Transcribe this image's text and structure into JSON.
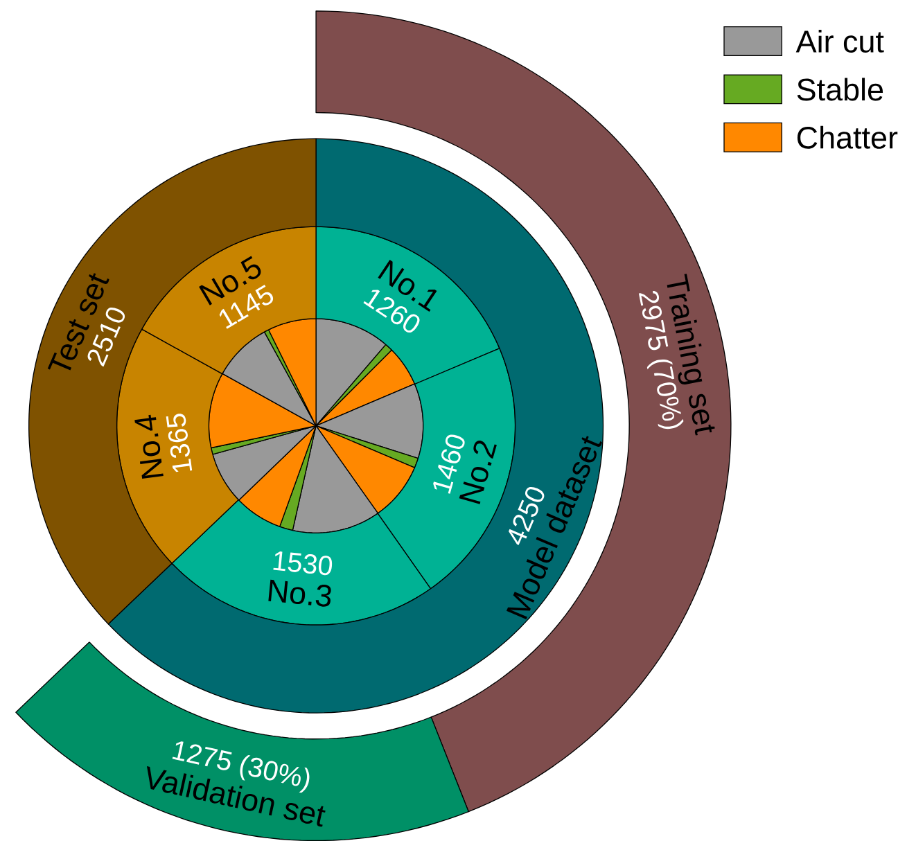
{
  "chart_data": [
    {
      "type": "pie",
      "legend": "top right",
      "categories": [
        "Air cut",
        "Stable",
        "Chatter",
        null,
        null,
        null,
        null,
        null,
        null,
        null,
        null,
        null,
        null,
        null,
        null
      ],
      "values": [
        11.3,
        1.2,
        6.1,
        11.3,
        1.5,
        8.8,
        13.3,
        2.0,
        7.3,
        7.9,
        1.0,
        11.4,
        8.9,
        0.7,
        7.3
      ],
      "colors": [
        "#999999",
        "#66aa22",
        "#ff8800",
        "#999999",
        "#66aa22",
        "#ff8800",
        "#999999",
        "#66aa22",
        "#ff8800",
        "#999999",
        "#66aa22",
        "#ff8800",
        "#999999",
        "#66aa22",
        "#ff8800"
      ]
    },
    {
      "type": "donut",
      "categories": [
        "No.1",
        "No.2",
        "No.3",
        "No.4",
        "No.5"
      ],
      "values": [
        1260,
        1460,
        1530,
        1365,
        1145
      ],
      "data_labels": true,
      "colors": [
        "#00b294",
        "#00b294",
        "#00b294",
        "#c88400",
        "#c88400"
      ]
    },
    {
      "type": "donut",
      "categories": [
        "Model dataset",
        "Test set"
      ],
      "values": [
        4250,
        2510
      ],
      "data_labels": true,
      "colors": [
        "#006a70",
        "#7f5200"
      ]
    },
    {
      "type": "donut",
      "categories": [
        "Training set",
        "Validation set"
      ],
      "values": [
        2975,
        1275
      ],
      "value_labels": [
        "2975 (70%)",
        "1275 (30%)"
      ],
      "colors": [
        "#7f4d4d",
        "#009066"
      ]
    }
  ]
}
